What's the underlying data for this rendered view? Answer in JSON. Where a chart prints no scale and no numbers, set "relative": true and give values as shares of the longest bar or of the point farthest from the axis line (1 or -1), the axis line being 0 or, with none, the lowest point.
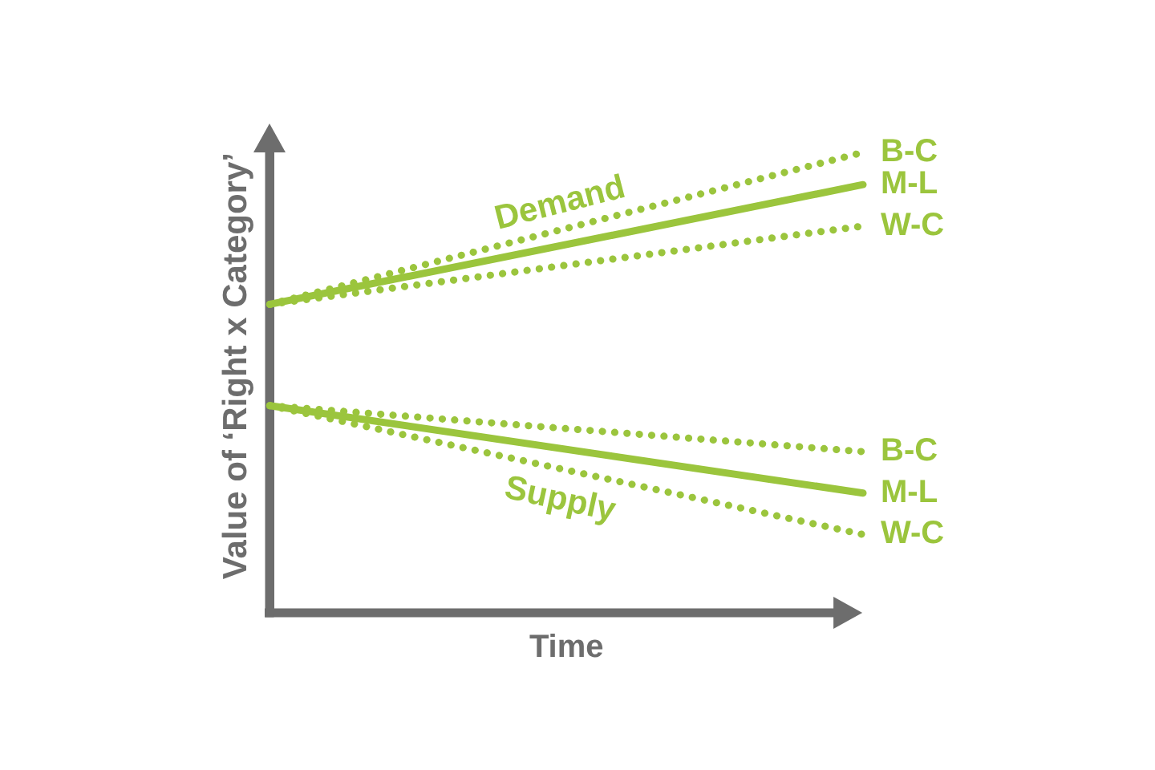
{
  "chart_data": {
    "type": "line",
    "xlabel": "Time",
    "ylabel": "Value of ‘Right x Category’",
    "categories": [
      null,
      null
    ],
    "relative": true,
    "marker": "none",
    "series": [
      {
        "name": "B-C",
        "color": "#9bc53d",
        "line_style": "dotted",
        "values": [
          0.67,
          1
        ]
      },
      {
        "name": "M-L",
        "color": "#9bc53d",
        "line_style": "solid",
        "values": [
          0.67,
          0.93
        ]
      },
      {
        "name": "W-C",
        "color": "#9bc53d",
        "line_style": "dotted",
        "values": [
          0.67,
          0.84
        ]
      },
      {
        "name": "B-C",
        "color": "#9bc53d",
        "line_style": "dotted",
        "values": [
          0.45,
          0.35
        ]
      },
      {
        "name": "M-L",
        "color": "#9bc53d",
        "line_style": "solid",
        "values": [
          0.45,
          0.26
        ]
      },
      {
        "name": "W-C",
        "color": "#9bc53d",
        "line_style": "dotted",
        "values": [
          0.45,
          0.17
        ]
      }
    ],
    "annotations": [
      "Demand",
      "Supply"
    ]
  }
}
